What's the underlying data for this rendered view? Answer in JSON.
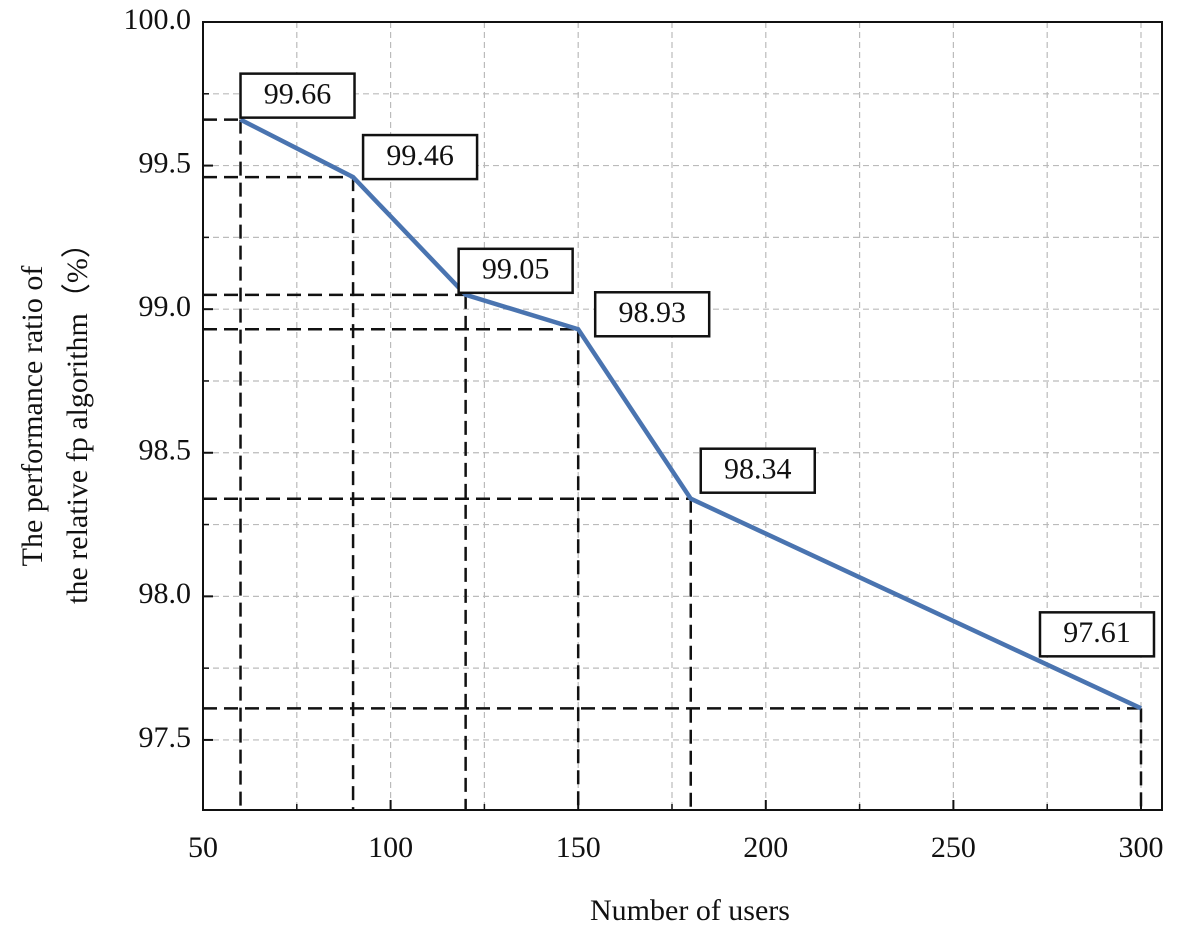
{
  "chart_data": {
    "type": "line",
    "xlabel": "Number of users",
    "ylabel": [
      "The performance ratio of",
      "the relative fp algorithm（%）"
    ],
    "x": [
      60,
      90,
      120,
      150,
      180,
      300
    ],
    "series": [
      {
        "color": "#4a74b0",
        "values": [
          99.66,
          99.46,
          99.05,
          98.93,
          98.34,
          97.61
        ]
      }
    ],
    "xlim": [
      50,
      305.6
    ],
    "ylim": [
      97.256,
      100
    ],
    "xticks": [
      50,
      100,
      150,
      200,
      250,
      300
    ],
    "xminorticks": [
      75,
      125,
      175,
      225,
      275
    ],
    "yticks": [
      {
        "value": 97.5,
        "label": "97.5"
      },
      {
        "value": 98,
        "label": "98.0"
      },
      {
        "value": 98.5,
        "label": "98.5"
      },
      {
        "value": 99,
        "label": "99.0"
      },
      {
        "value": 99.5,
        "label": "99.5"
      },
      {
        "value": 100,
        "label": "100.0"
      }
    ],
    "yminorticks": [
      97.75,
      98.25,
      98.75,
      99.25,
      99.75
    ],
    "grid": true
  }
}
